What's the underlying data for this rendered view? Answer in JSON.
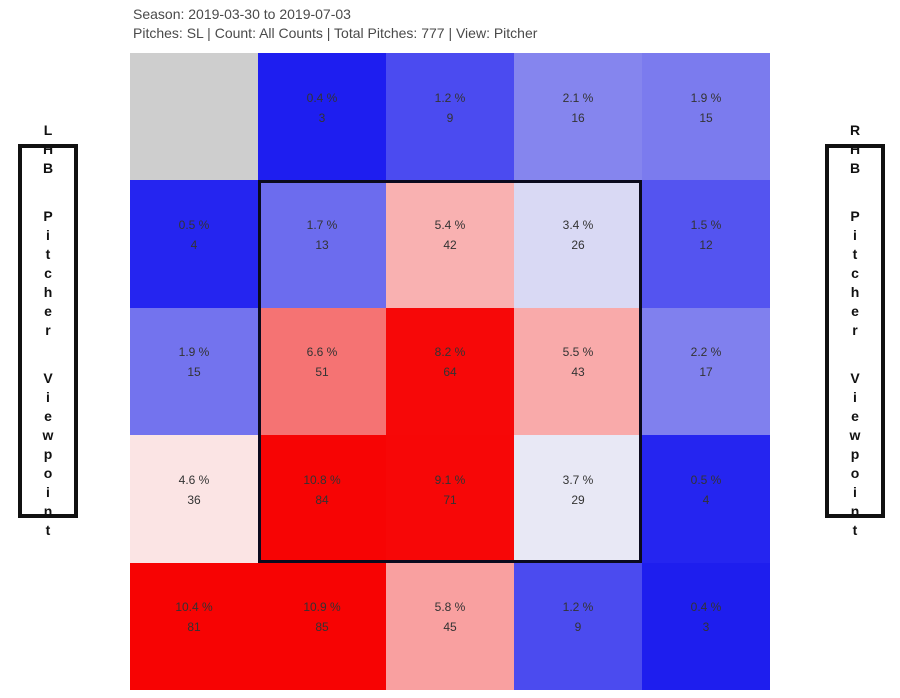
{
  "header": {
    "line1": "Season: 2019-03-30 to 2019-07-03",
    "line2": "Pitches: SL | Count: All Counts | Total Pitches: 777 | View: Pitcher"
  },
  "left_label": "LHB Pitcher Viewpoint",
  "right_label": "RHB Pitcher Viewpoint",
  "chart_data": {
    "type": "heatmap",
    "rows": 5,
    "cols": 5,
    "value_unit": "percent of pitches",
    "secondary_value": "pitch count",
    "total_pitches": 777,
    "no_data_color": "#cecece",
    "strike_zone": {
      "row_start": 2,
      "row_end": 4,
      "col_start": 2,
      "col_end": 4
    },
    "grid": [
      [
        {
          "pct": null,
          "count": null,
          "pct_label": "",
          "count_label": "",
          "color": "#cecece"
        },
        {
          "pct": 0.4,
          "count": 3,
          "pct_label": "0.4 %",
          "count_label": "3",
          "color": "#1e1ef0"
        },
        {
          "pct": 1.2,
          "count": 9,
          "pct_label": "1.2 %",
          "count_label": "9",
          "color": "#4b4bf0"
        },
        {
          "pct": 2.1,
          "count": 16,
          "pct_label": "2.1 %",
          "count_label": "16",
          "color": "#8585ee"
        },
        {
          "pct": 1.9,
          "count": 15,
          "pct_label": "1.9 %",
          "count_label": "15",
          "color": "#7b7bee"
        }
      ],
      [
        {
          "pct": 0.5,
          "count": 4,
          "pct_label": "0.5 %",
          "count_label": "4",
          "color": "#2525f0"
        },
        {
          "pct": 1.7,
          "count": 13,
          "pct_label": "1.7 %",
          "count_label": "13",
          "color": "#6c6cee"
        },
        {
          "pct": 5.4,
          "count": 42,
          "pct_label": "5.4 %",
          "count_label": "42",
          "color": "#f9b1b1"
        },
        {
          "pct": 3.4,
          "count": 26,
          "pct_label": "3.4 %",
          "count_label": "26",
          "color": "#d9d9f4"
        },
        {
          "pct": 1.5,
          "count": 12,
          "pct_label": "1.5 %",
          "count_label": "12",
          "color": "#5454f0"
        }
      ],
      [
        {
          "pct": 1.9,
          "count": 15,
          "pct_label": "1.9 %",
          "count_label": "15",
          "color": "#7373ee"
        },
        {
          "pct": 6.6,
          "count": 51,
          "pct_label": "6.6 %",
          "count_label": "51",
          "color": "#f57373"
        },
        {
          "pct": 8.2,
          "count": 64,
          "pct_label": "8.2 %",
          "count_label": "64",
          "color": "#f70808"
        },
        {
          "pct": 5.5,
          "count": 43,
          "pct_label": "5.5 %",
          "count_label": "43",
          "color": "#f9aaaa"
        },
        {
          "pct": 2.2,
          "count": 17,
          "pct_label": "2.2 %",
          "count_label": "17",
          "color": "#8080ee"
        }
      ],
      [
        {
          "pct": 4.6,
          "count": 36,
          "pct_label": "4.6 %",
          "count_label": "36",
          "color": "#fbe4e4"
        },
        {
          "pct": 10.8,
          "count": 84,
          "pct_label": "10.8 %",
          "count_label": "84",
          "color": "#f70404"
        },
        {
          "pct": 9.1,
          "count": 71,
          "pct_label": "9.1 %",
          "count_label": "71",
          "color": "#f70707"
        },
        {
          "pct": 3.7,
          "count": 29,
          "pct_label": "3.7 %",
          "count_label": "29",
          "color": "#e8e8f5"
        },
        {
          "pct": 0.5,
          "count": 4,
          "pct_label": "0.5 %",
          "count_label": "4",
          "color": "#2525f0"
        }
      ],
      [
        {
          "pct": 10.4,
          "count": 81,
          "pct_label": "10.4 %",
          "count_label": "81",
          "color": "#f70303"
        },
        {
          "pct": 10.9,
          "count": 85,
          "pct_label": "10.9 %",
          "count_label": "85",
          "color": "#f70303"
        },
        {
          "pct": 5.8,
          "count": 45,
          "pct_label": "5.8 %",
          "count_label": "45",
          "color": "#f9a0a0"
        },
        {
          "pct": 1.2,
          "count": 9,
          "pct_label": "1.2 %",
          "count_label": "9",
          "color": "#4b4bef"
        },
        {
          "pct": 0.4,
          "count": 3,
          "pct_label": "0.4 %",
          "count_label": "3",
          "color": "#1e1eee"
        }
      ]
    ]
  }
}
